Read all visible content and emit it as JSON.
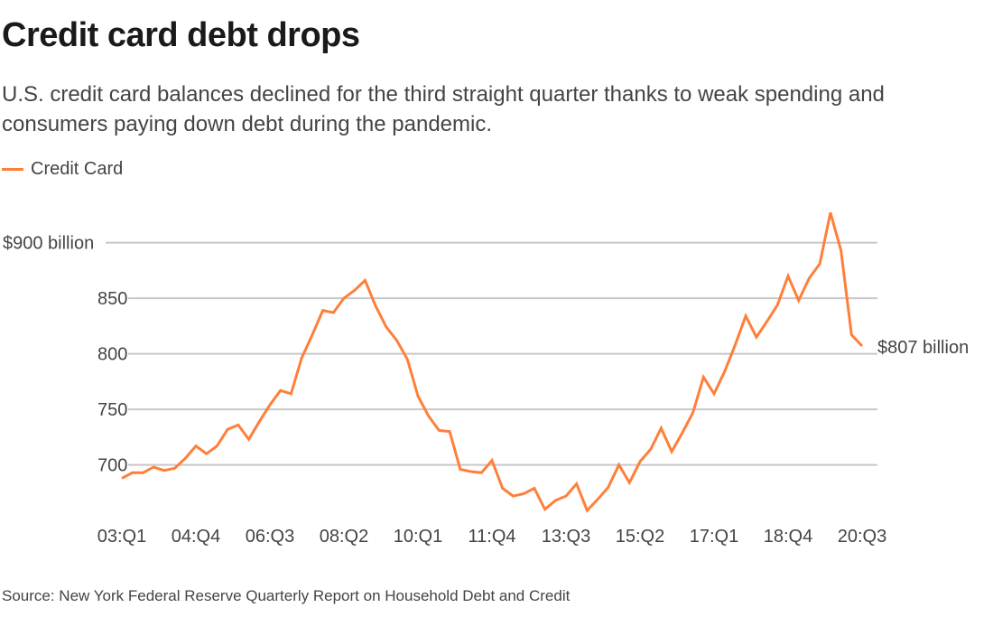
{
  "title": "Credit card debt drops",
  "subtitle": "U.S. credit card balances declined for the third straight quarter thanks to weak spending and consumers paying down debt during the pandemic.",
  "source": "Source: New York Federal Reserve Quarterly Report on Household Debt and Credit",
  "colors": {
    "series": "#ff7f3a",
    "grid": "#c8c8c8"
  },
  "chart_data": {
    "type": "line",
    "title": "Credit card debt drops",
    "legend": {
      "placement": "top-left",
      "entries": [
        "Credit Card"
      ]
    },
    "grid": "horizontal",
    "ylim": [
      655,
      933
    ],
    "yticks": [
      {
        "value": 700,
        "label": "700"
      },
      {
        "value": 750,
        "label": "750"
      },
      {
        "value": 800,
        "label": "800"
      },
      {
        "value": 850,
        "label": "850"
      },
      {
        "value": 900,
        "label": "$900 billion"
      }
    ],
    "xtick_labels": [
      "03:Q1",
      "04:Q4",
      "06:Q3",
      "08:Q2",
      "10:Q1",
      "11:Q4",
      "13:Q3",
      "15:Q2",
      "17:Q1",
      "18:Q4",
      "20:Q3"
    ],
    "end_label": "$807 billion",
    "x_start": "03:Q1",
    "x_end": "20:Q3",
    "series": [
      {
        "name": "Credit Card",
        "values": [
          688,
          693,
          693,
          698,
          695,
          697,
          706,
          717,
          710,
          717,
          732,
          736,
          723,
          739,
          754,
          767,
          764,
          796,
          817,
          839,
          837,
          850,
          857,
          866,
          843,
          824,
          812,
          795,
          762,
          744,
          731,
          730,
          696,
          694,
          693,
          704,
          679,
          672,
          674,
          679,
          660,
          668,
          672,
          683,
          659,
          669,
          680,
          700,
          684,
          703,
          714,
          733,
          712,
          729,
          747,
          779,
          764,
          784,
          808,
          834,
          815,
          829,
          844,
          870,
          848,
          868,
          881,
          927,
          893,
          817,
          807
        ]
      }
    ]
  }
}
